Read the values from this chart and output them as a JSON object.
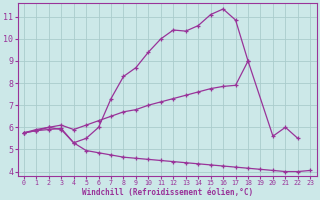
{
  "background_color": "#cce8e8",
  "grid_color": "#aacccc",
  "line_color": "#993399",
  "xlabel": "Windchill (Refroidissement éolien,°C)",
  "xlim": [
    -0.5,
    23.5
  ],
  "ylim": [
    3.8,
    11.6
  ],
  "yticks": [
    4,
    5,
    6,
    7,
    8,
    9,
    10,
    11
  ],
  "xticks": [
    0,
    1,
    2,
    3,
    4,
    5,
    6,
    7,
    8,
    9,
    10,
    11,
    12,
    13,
    14,
    15,
    16,
    17,
    18,
    19,
    20,
    21,
    22,
    23
  ],
  "line1_x": [
    0,
    1,
    2,
    3,
    4,
    5,
    6,
    7,
    8,
    9,
    10,
    11,
    12,
    13,
    14,
    15,
    16,
    17,
    18
  ],
  "line1_y": [
    5.75,
    5.9,
    6.0,
    5.9,
    5.3,
    5.5,
    6.0,
    7.3,
    8.3,
    8.7,
    9.4,
    10.0,
    10.4,
    10.35,
    10.6,
    11.1,
    11.35,
    10.85,
    9.0
  ],
  "line2_x": [
    0,
    1,
    2,
    3,
    4,
    5,
    6,
    7,
    8,
    9,
    10,
    11,
    12,
    13,
    14,
    15,
    16,
    17,
    18,
    20,
    21,
    22,
    23
  ],
  "line2_y": [
    5.75,
    5.85,
    6.0,
    6.1,
    5.9,
    6.1,
    6.3,
    6.5,
    6.7,
    6.8,
    7.0,
    7.15,
    7.3,
    7.45,
    7.6,
    7.75,
    7.85,
    7.9,
    9.0,
    5.6,
    6.0,
    5.5,
    null
  ],
  "line3_x": [
    0,
    1,
    2,
    3,
    4,
    5,
    6,
    7,
    8,
    9,
    10,
    11,
    12,
    13,
    14,
    15,
    16,
    17,
    18,
    19,
    20,
    21,
    22,
    23
  ],
  "line3_y": [
    5.75,
    5.85,
    5.9,
    5.95,
    5.3,
    4.95,
    4.85,
    4.75,
    4.65,
    4.6,
    4.55,
    4.5,
    4.45,
    4.4,
    4.35,
    4.3,
    4.25,
    4.2,
    4.15,
    4.1,
    4.05,
    4.0,
    4.0,
    4.05
  ]
}
